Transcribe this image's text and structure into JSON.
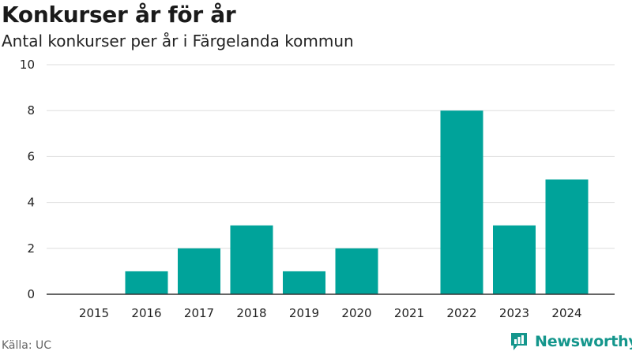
{
  "header": {
    "title": "Konkurser år för år",
    "subtitle": "Antal konkurser per år i Färgelanda kommun"
  },
  "footer": {
    "source": "Källa: UC",
    "brand": "Newsworthy",
    "brand_icon": "bar-chart-logo-icon"
  },
  "colors": {
    "bar": "#00a39a",
    "grid": "#dddddd",
    "axis": "#333333",
    "brand": "#14968c"
  },
  "chart_data": {
    "type": "bar",
    "title": "Konkurser år för år",
    "subtitle": "Antal konkurser per år i Färgelanda kommun",
    "categories": [
      "2015",
      "2016",
      "2017",
      "2018",
      "2019",
      "2020",
      "2021",
      "2022",
      "2023",
      "2024"
    ],
    "values": [
      0,
      1,
      2,
      3,
      1,
      2,
      0,
      8,
      3,
      5
    ],
    "ylim": [
      0,
      10
    ],
    "yticks": [
      0,
      2,
      4,
      6,
      8,
      10
    ],
    "xlabel": "",
    "ylabel": "",
    "grid": true
  }
}
